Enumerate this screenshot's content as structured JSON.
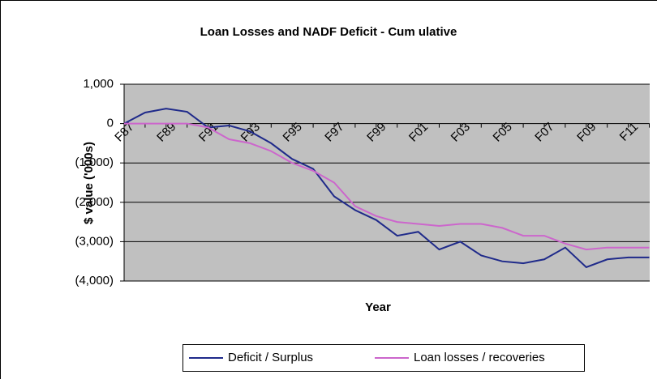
{
  "chart_data": {
    "type": "line",
    "title": "Loan Losses and NADF Deficit - Cum ulative",
    "x_label": "Year",
    "y_label": "$ value ('000s)",
    "categories": [
      "F87",
      null,
      "F89",
      null,
      "F91",
      null,
      "F93",
      null,
      "F95",
      null,
      "F97",
      null,
      "F99",
      null,
      "F01",
      null,
      "F03",
      null,
      "F05",
      null,
      "F07",
      null,
      "F09",
      null,
      "F11",
      null
    ],
    "series": [
      {
        "name": "Deficit / Surplus",
        "color": "#1f2a8a",
        "values": [
          0,
          280,
          380,
          300,
          -100,
          -50,
          -200,
          -500,
          -900,
          -1150,
          -1850,
          -2200,
          -2450,
          -2850,
          -2750,
          -3200,
          -3000,
          -3350,
          -3500,
          -3550,
          -3450,
          -3150,
          -3650,
          -3450,
          -3400,
          -3400
        ]
      },
      {
        "name": "Loan losses / recoveries",
        "color": "#cc66cc",
        "values": [
          0,
          0,
          0,
          0,
          -100,
          -400,
          -500,
          -700,
          -1000,
          -1200,
          -1500,
          -2100,
          -2350,
          -2500,
          -2550,
          -2600,
          -2550,
          -2550,
          -2650,
          -2850,
          -2850,
          -3050,
          -3200,
          -3150,
          -3150,
          -3150
        ]
      }
    ],
    "ylim": [
      -4000,
      1000
    ],
    "yticks": [
      {
        "value": -4000,
        "label": "(4,000)"
      },
      {
        "value": -3000,
        "label": "(3,000)"
      },
      {
        "value": -2000,
        "label": "(2,000)"
      },
      {
        "value": -1000,
        "label": "(1,000)"
      },
      0,
      {
        "value": 1000,
        "label": "1,000"
      }
    ],
    "grid": true,
    "legend": "bottom"
  }
}
